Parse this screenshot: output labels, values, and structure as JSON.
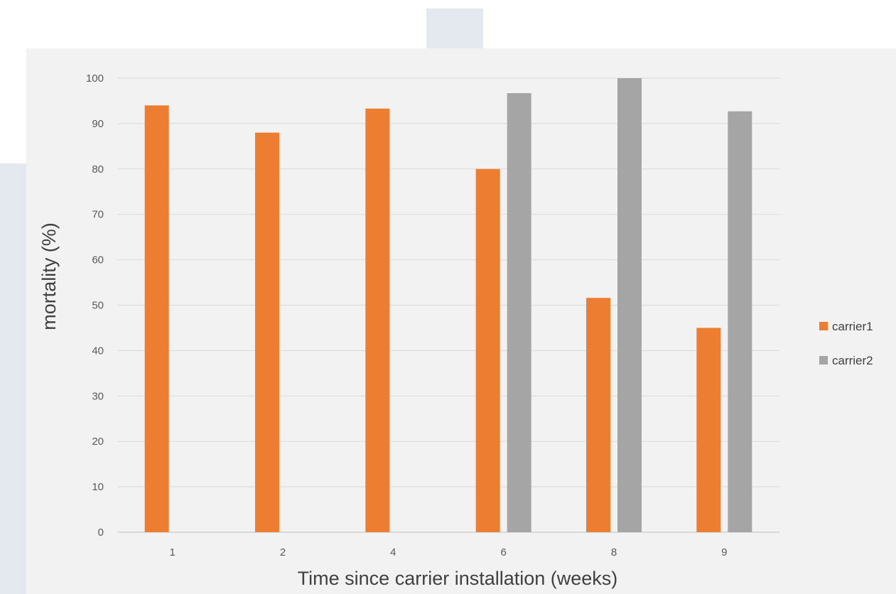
{
  "header": {
    "title_fragment": ""
  },
  "chart_data": {
    "type": "bar",
    "title": "",
    "xlabel": "Time since carrier installation (weeks)",
    "ylabel": "mortality (%)",
    "categories": [
      "1",
      "2",
      "4",
      "6",
      "8",
      "9"
    ],
    "ylim": [
      0,
      100
    ],
    "yticks": [
      0,
      10,
      20,
      30,
      40,
      50,
      60,
      70,
      80,
      90,
      100
    ],
    "grid": true,
    "legend_position": "right",
    "series": [
      {
        "name": "carrier1",
        "color": "#ed7d31",
        "values": [
          94,
          88,
          93.3,
          80,
          51.6,
          45
        ]
      },
      {
        "name": "carrier2",
        "color": "#a5a5a5",
        "values": [
          null,
          null,
          null,
          96.7,
          100,
          92.7
        ]
      }
    ]
  }
}
